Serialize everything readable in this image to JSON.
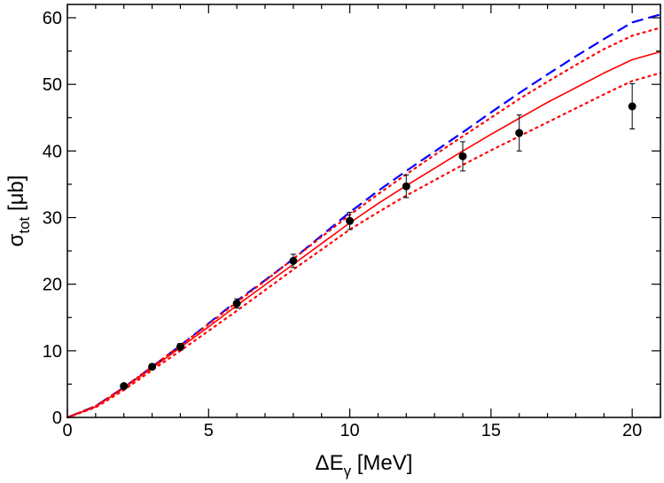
{
  "chart_data": {
    "type": "line",
    "xlabel": {
      "main": "ΔE",
      "sub": "γ",
      "unit": " [MeV]"
    },
    "ylabel": {
      "main": "σ",
      "sub": "tot",
      "unit": " [μb]"
    },
    "xlim": [
      0,
      21
    ],
    "ylim": [
      0,
      62
    ],
    "xticks": [
      0,
      5,
      10,
      15,
      20
    ],
    "yticks": [
      0,
      10,
      20,
      30,
      40,
      50,
      60
    ],
    "grid": false,
    "legend": "none",
    "series": [
      {
        "style": "dashed",
        "color": "#0000ff",
        "x": [
          0,
          1,
          2,
          3,
          4,
          5,
          6,
          7,
          8,
          9,
          10,
          11,
          12,
          13,
          14,
          15,
          16,
          17,
          18,
          19,
          20,
          21
        ],
        "y": [
          0,
          1.7,
          4.5,
          7.6,
          10.8,
          14.1,
          17.5,
          20.6,
          23.8,
          27.3,
          30.8,
          34.0,
          37.0,
          39.9,
          42.8,
          45.8,
          48.7,
          51.5,
          54.2,
          56.8,
          59.3,
          60.5
        ]
      },
      {
        "style": "dotted",
        "color": "#ff0000",
        "x": [
          0,
          1,
          2,
          3,
          4,
          5,
          6,
          7,
          8,
          9,
          10,
          11,
          12,
          13,
          14,
          15,
          16,
          17,
          18,
          19,
          20,
          21
        ],
        "y": [
          0,
          1.7,
          4.5,
          7.6,
          10.8,
          14.0,
          17.3,
          20.5,
          23.8,
          27.1,
          30.4,
          33.5,
          36.5,
          39.4,
          42.2,
          45.0,
          47.8,
          50.4,
          52.9,
          55.3,
          57.3,
          58.5
        ]
      },
      {
        "style": "solid",
        "color": "#ff0000",
        "x": [
          0,
          1,
          2,
          3,
          4,
          5,
          6,
          7,
          8,
          9,
          10,
          11,
          12,
          13,
          14,
          15,
          16,
          17,
          18,
          19,
          20,
          21
        ],
        "y": [
          0,
          1.6,
          4.4,
          7.4,
          10.5,
          13.6,
          16.8,
          19.9,
          23.0,
          26.1,
          29.2,
          32.1,
          34.8,
          37.4,
          40.0,
          42.5,
          44.9,
          47.3,
          49.5,
          51.7,
          53.7,
          54.9
        ]
      },
      {
        "style": "dotted",
        "color": "#ff0000",
        "x": [
          0,
          1,
          2,
          3,
          4,
          5,
          6,
          7,
          8,
          9,
          10,
          11,
          12,
          13,
          14,
          15,
          16,
          17,
          18,
          19,
          20,
          21
        ],
        "y": [
          0,
          1.5,
          4.1,
          7.1,
          10.0,
          13.0,
          16.0,
          19.1,
          22.2,
          25.2,
          28.2,
          30.8,
          33.3,
          35.6,
          37.9,
          40.1,
          42.2,
          44.3,
          46.4,
          48.5,
          50.5,
          51.7
        ]
      }
    ],
    "data_points": {
      "color": "#000000",
      "x": [
        2,
        3,
        4,
        6,
        8,
        10,
        12,
        14,
        16,
        20
      ],
      "y": [
        4.7,
        7.6,
        10.6,
        17.1,
        23.5,
        29.5,
        34.7,
        39.2,
        42.7,
        46.7
      ],
      "err": [
        0.3,
        0.4,
        0.5,
        0.7,
        1.0,
        1.3,
        1.7,
        2.2,
        2.7,
        3.4
      ]
    }
  }
}
